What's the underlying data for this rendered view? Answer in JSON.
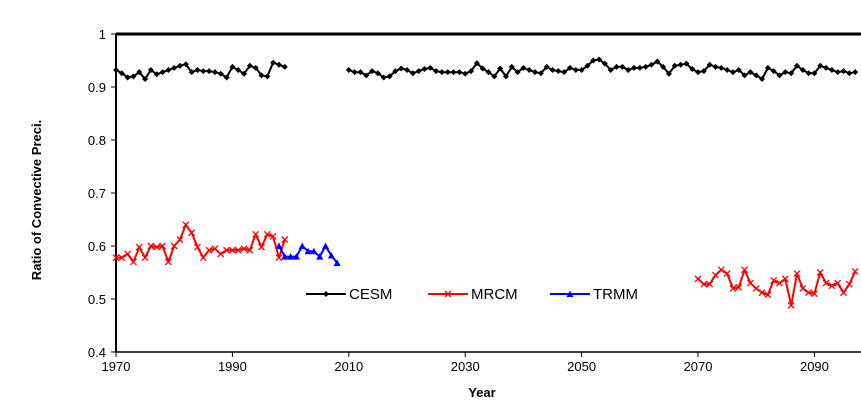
{
  "chart_data": {
    "type": "line",
    "title": "",
    "xlabel": "Year",
    "ylabel": "Ratio of Convective Preci.",
    "xlim": [
      1970,
      2098
    ],
    "ylim": [
      0.4,
      1.0
    ],
    "x_ticks": [
      "1970",
      "1990",
      "2010",
      "2030",
      "2050",
      "2070",
      "2090"
    ],
    "y_ticks": [
      "0.4",
      "0.5",
      "0.6",
      "0.7",
      "0.8",
      "0.9",
      "1"
    ],
    "grid": false,
    "legend_position": "bottom-center",
    "series": [
      {
        "name": "CESM",
        "color": "#000000",
        "marker": "diamond",
        "points": [
          [
            1970,
            0.932
          ],
          [
            1971,
            0.926
          ],
          [
            1972,
            0.918
          ],
          [
            1973,
            0.92
          ],
          [
            1974,
            0.928
          ],
          [
            1975,
            0.915
          ],
          [
            1976,
            0.932
          ],
          [
            1977,
            0.924
          ],
          [
            1978,
            0.928
          ],
          [
            1979,
            0.932
          ],
          [
            1980,
            0.936
          ],
          [
            1981,
            0.94
          ],
          [
            1982,
            0.943
          ],
          [
            1983,
            0.928
          ],
          [
            1984,
            0.932
          ],
          [
            1985,
            0.93
          ],
          [
            1986,
            0.93
          ],
          [
            1987,
            0.928
          ],
          [
            1988,
            0.925
          ],
          [
            1989,
            0.918
          ],
          [
            1990,
            0.938
          ],
          [
            1991,
            0.932
          ],
          [
            1992,
            0.925
          ],
          [
            1993,
            0.94
          ],
          [
            1994,
            0.936
          ],
          [
            1995,
            0.922
          ],
          [
            1996,
            0.92
          ],
          [
            1997,
            0.946
          ],
          [
            1998,
            0.942
          ],
          [
            1999,
            0.938
          ],
          [
            2010,
            0.932
          ],
          [
            2011,
            0.928
          ],
          [
            2012,
            0.928
          ],
          [
            2013,
            0.922
          ],
          [
            2014,
            0.93
          ],
          [
            2015,
            0.926
          ],
          [
            2016,
            0.918
          ],
          [
            2017,
            0.92
          ],
          [
            2018,
            0.93
          ],
          [
            2019,
            0.935
          ],
          [
            2020,
            0.932
          ],
          [
            2021,
            0.926
          ],
          [
            2022,
            0.93
          ],
          [
            2023,
            0.934
          ],
          [
            2024,
            0.936
          ],
          [
            2025,
            0.93
          ],
          [
            2026,
            0.928
          ],
          [
            2027,
            0.928
          ],
          [
            2028,
            0.928
          ],
          [
            2029,
            0.928
          ],
          [
            2030,
            0.925
          ],
          [
            2031,
            0.93
          ],
          [
            2032,
            0.945
          ],
          [
            2033,
            0.935
          ],
          [
            2034,
            0.928
          ],
          [
            2035,
            0.92
          ],
          [
            2036,
            0.935
          ],
          [
            2037,
            0.92
          ],
          [
            2038,
            0.938
          ],
          [
            2039,
            0.928
          ],
          [
            2040,
            0.936
          ],
          [
            2041,
            0.932
          ],
          [
            2042,
            0.928
          ],
          [
            2043,
            0.926
          ],
          [
            2044,
            0.938
          ],
          [
            2045,
            0.932
          ],
          [
            2046,
            0.93
          ],
          [
            2047,
            0.928
          ],
          [
            2048,
            0.936
          ],
          [
            2049,
            0.932
          ],
          [
            2050,
            0.932
          ],
          [
            2051,
            0.94
          ],
          [
            2052,
            0.95
          ],
          [
            2053,
            0.952
          ],
          [
            2054,
            0.944
          ],
          [
            2055,
            0.932
          ],
          [
            2056,
            0.938
          ],
          [
            2057,
            0.938
          ],
          [
            2058,
            0.932
          ],
          [
            2059,
            0.936
          ],
          [
            2060,
            0.936
          ],
          [
            2061,
            0.938
          ],
          [
            2062,
            0.942
          ],
          [
            2063,
            0.948
          ],
          [
            2064,
            0.938
          ],
          [
            2065,
            0.925
          ],
          [
            2066,
            0.94
          ],
          [
            2067,
            0.942
          ],
          [
            2068,
            0.944
          ],
          [
            2069,
            0.934
          ],
          [
            2070,
            0.928
          ],
          [
            2071,
            0.93
          ],
          [
            2072,
            0.942
          ],
          [
            2073,
            0.938
          ],
          [
            2074,
            0.936
          ],
          [
            2075,
            0.932
          ],
          [
            2076,
            0.928
          ],
          [
            2077,
            0.932
          ],
          [
            2078,
            0.922
          ],
          [
            2079,
            0.928
          ],
          [
            2080,
            0.922
          ],
          [
            2081,
            0.915
          ],
          [
            2082,
            0.936
          ],
          [
            2083,
            0.93
          ],
          [
            2084,
            0.922
          ],
          [
            2085,
            0.928
          ],
          [
            2086,
            0.926
          ],
          [
            2087,
            0.94
          ],
          [
            2088,
            0.932
          ],
          [
            2089,
            0.926
          ],
          [
            2090,
            0.926
          ],
          [
            2091,
            0.94
          ],
          [
            2092,
            0.936
          ],
          [
            2093,
            0.932
          ],
          [
            2094,
            0.928
          ],
          [
            2095,
            0.93
          ],
          [
            2096,
            0.926
          ],
          [
            2097,
            0.928
          ]
        ]
      },
      {
        "name": "MRCM",
        "color": "#ff0000",
        "marker": "x",
        "points": [
          [
            1970,
            0.578
          ],
          [
            1971,
            0.578
          ],
          [
            1972,
            0.585
          ],
          [
            1973,
            0.57
          ],
          [
            1974,
            0.598
          ],
          [
            1975,
            0.578
          ],
          [
            1976,
            0.6
          ],
          [
            1977,
            0.598
          ],
          [
            1978,
            0.6
          ],
          [
            1979,
            0.57
          ],
          [
            1980,
            0.6
          ],
          [
            1981,
            0.612
          ],
          [
            1982,
            0.64
          ],
          [
            1983,
            0.625
          ],
          [
            1984,
            0.598
          ],
          [
            1985,
            0.578
          ],
          [
            1986,
            0.592
          ],
          [
            1987,
            0.595
          ],
          [
            1988,
            0.585
          ],
          [
            1989,
            0.592
          ],
          [
            1990,
            0.592
          ],
          [
            1991,
            0.592
          ],
          [
            1992,
            0.595
          ],
          [
            1993,
            0.592
          ],
          [
            1994,
            0.622
          ],
          [
            1995,
            0.598
          ],
          [
            1996,
            0.622
          ],
          [
            1997,
            0.618
          ],
          [
            1998,
            0.578
          ],
          [
            1999,
            0.612
          ],
          [
            2070,
            0.538
          ],
          [
            2071,
            0.528
          ],
          [
            2072,
            0.528
          ],
          [
            2073,
            0.545
          ],
          [
            2074,
            0.555
          ],
          [
            2075,
            0.548
          ],
          [
            2076,
            0.52
          ],
          [
            2077,
            0.522
          ],
          [
            2078,
            0.555
          ],
          [
            2079,
            0.53
          ],
          [
            2080,
            0.52
          ],
          [
            2081,
            0.512
          ],
          [
            2082,
            0.508
          ],
          [
            2083,
            0.535
          ],
          [
            2084,
            0.53
          ],
          [
            2085,
            0.538
          ],
          [
            2086,
            0.488
          ],
          [
            2087,
            0.548
          ],
          [
            2088,
            0.52
          ],
          [
            2089,
            0.512
          ],
          [
            2090,
            0.51
          ],
          [
            2091,
            0.55
          ],
          [
            2092,
            0.53
          ],
          [
            2093,
            0.525
          ],
          [
            2094,
            0.53
          ],
          [
            2095,
            0.512
          ],
          [
            2096,
            0.528
          ],
          [
            2097,
            0.552
          ]
        ]
      },
      {
        "name": "TRMM",
        "color": "#0000ff",
        "marker": "triangle",
        "points": [
          [
            1998,
            0.6
          ],
          [
            1999,
            0.58
          ],
          [
            2000,
            0.58
          ],
          [
            2001,
            0.58
          ],
          [
            2002,
            0.6
          ],
          [
            2003,
            0.59
          ],
          [
            2004,
            0.59
          ],
          [
            2005,
            0.58
          ],
          [
            2006,
            0.6
          ],
          [
            2007,
            0.582
          ],
          [
            2008,
            0.568
          ]
        ]
      }
    ]
  }
}
